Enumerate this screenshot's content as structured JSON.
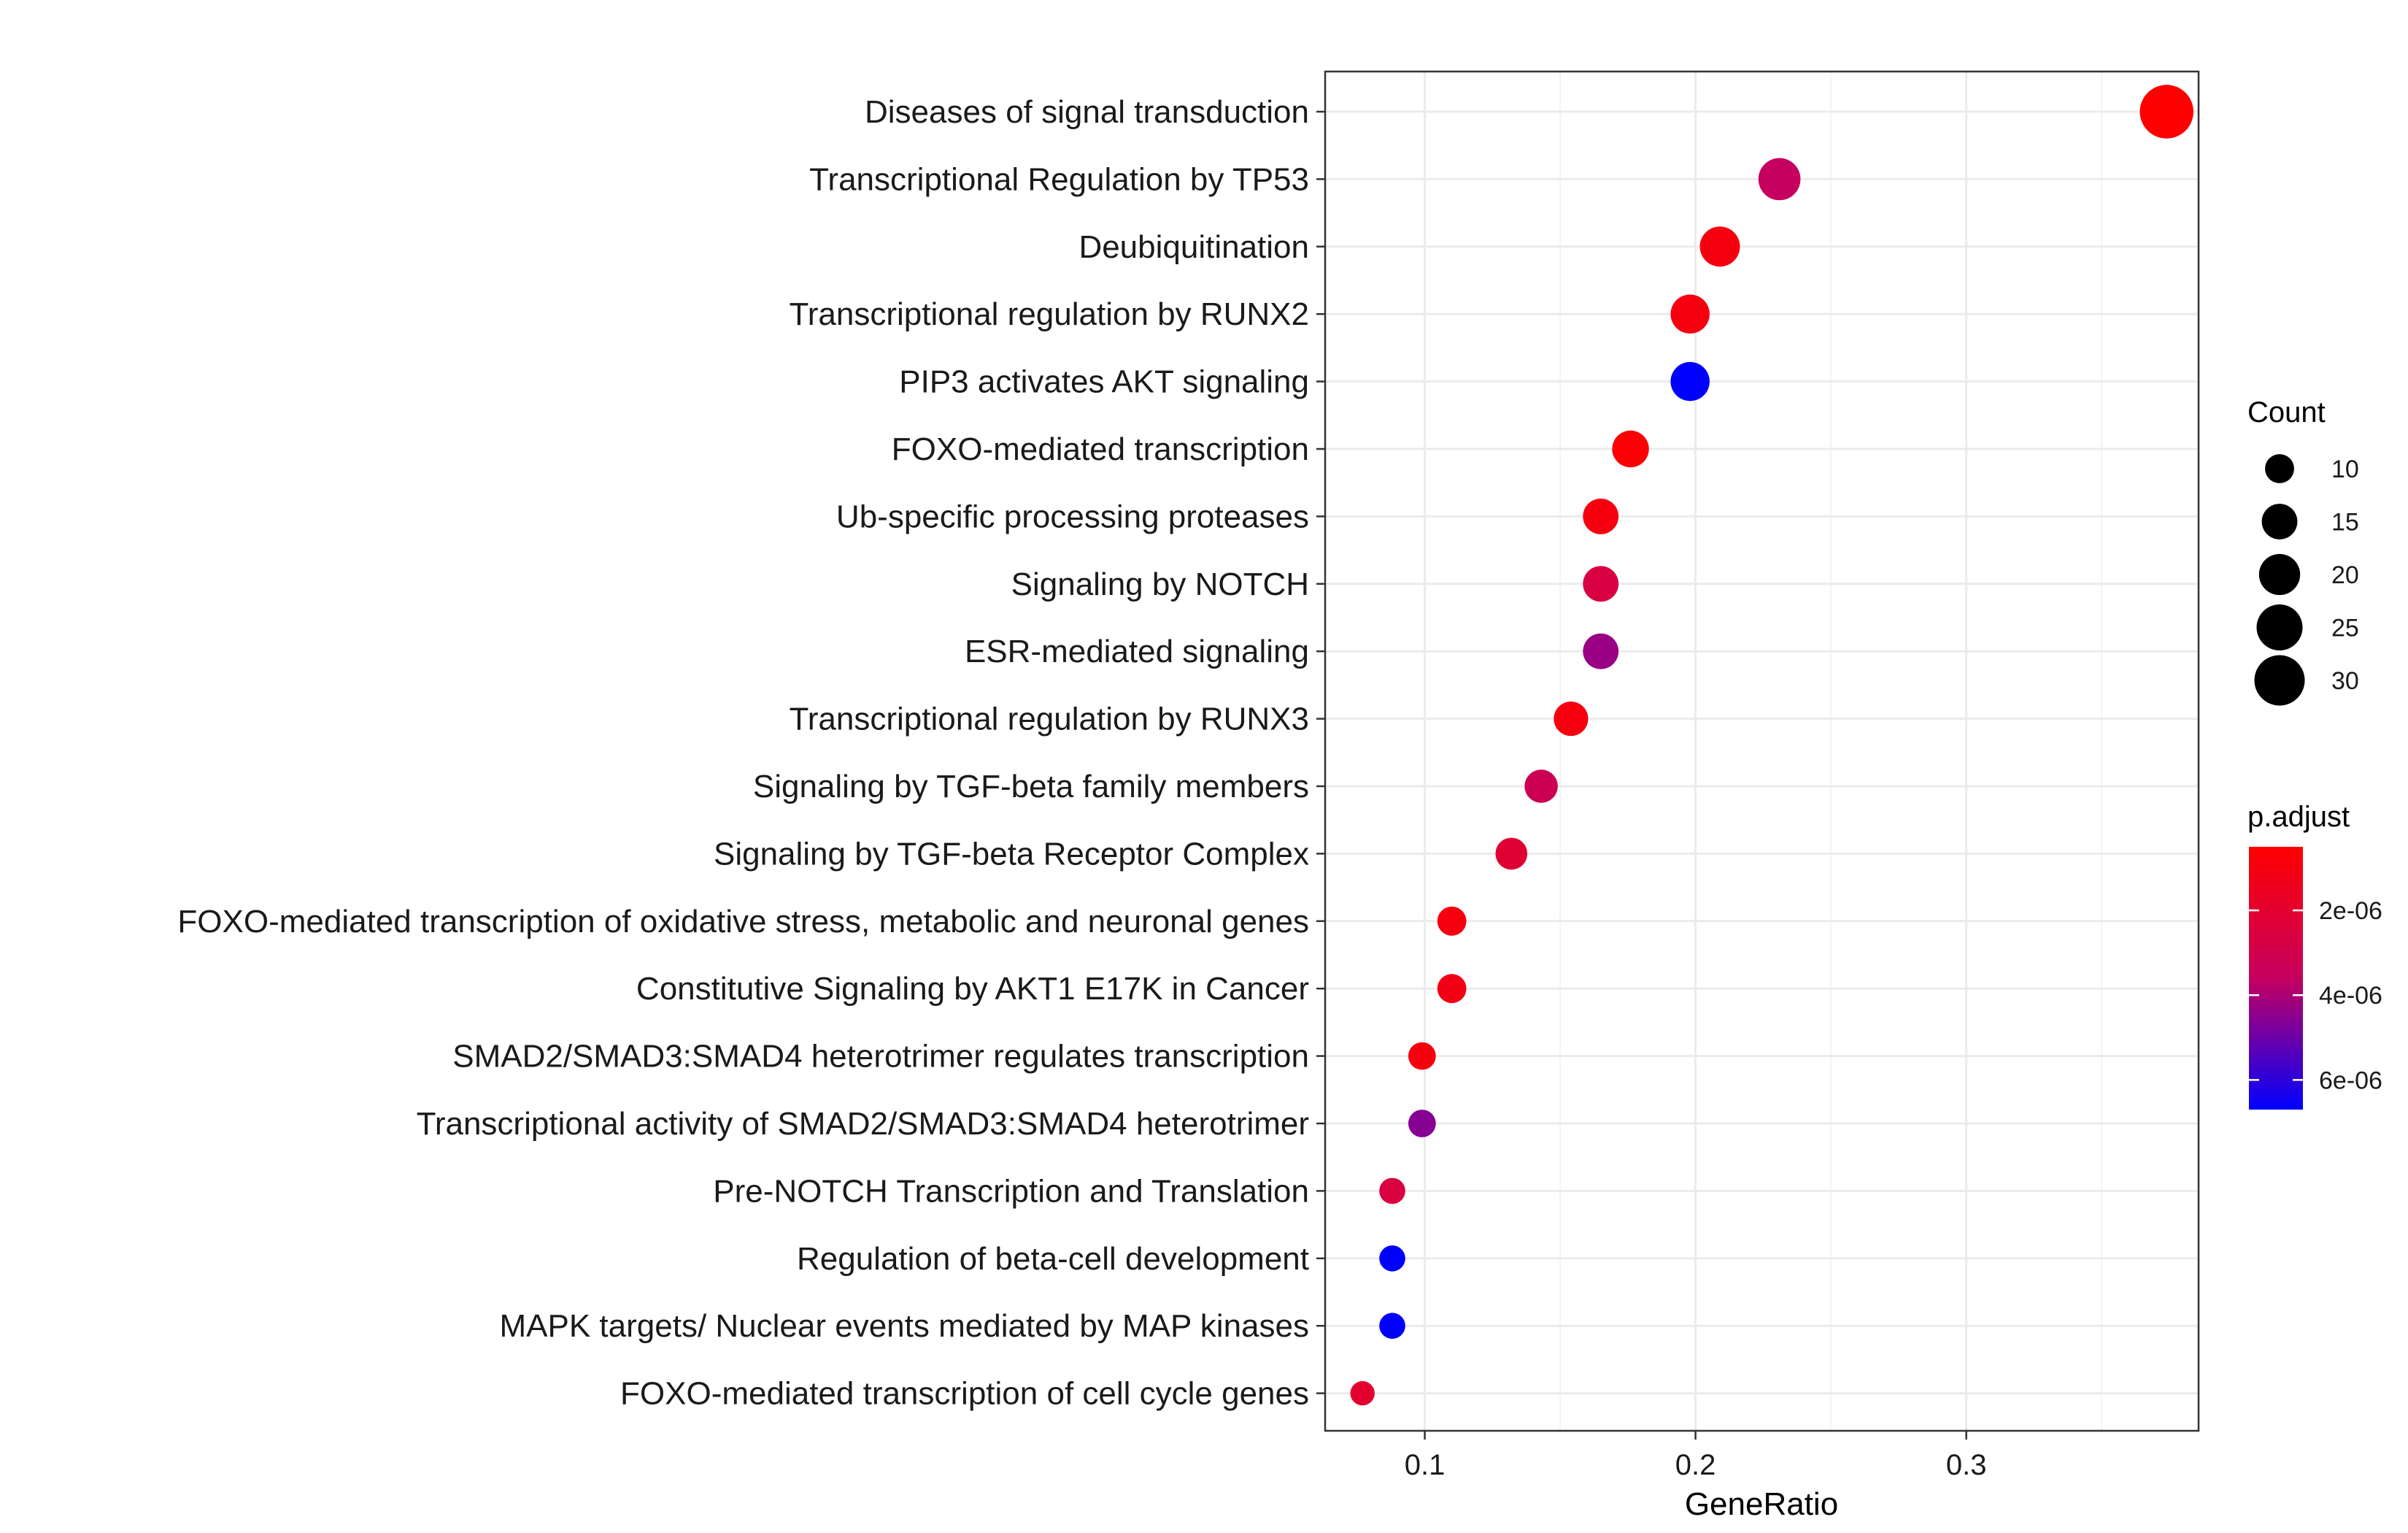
{
  "chart_data": {
    "type": "scatter",
    "xlabel": "GeneRatio",
    "ylabel": "",
    "xlim": [
      0.0632,
      0.3858
    ],
    "xticks": [
      0.1,
      0.2,
      0.3
    ],
    "x_tick_labels": [
      "0.1",
      "0.2",
      "0.3"
    ],
    "grid": true,
    "legend_position": "right",
    "categories": [
      "Diseases of signal transduction",
      "Transcriptional Regulation by TP53",
      "Deubiquitination",
      "Transcriptional regulation by RUNX2",
      "PIP3 activates AKT signaling",
      "FOXO-mediated transcription",
      "Ub-specific processing proteases",
      "Signaling by NOTCH",
      "ESR-mediated signaling",
      "Transcriptional regulation by RUNX3",
      "Signaling by TGF-beta family members",
      "Signaling by TGF-beta Receptor Complex",
      "FOXO-mediated transcription of oxidative stress, metabolic and neuronal genes",
      "Constitutive Signaling by AKT1 E17K in Cancer",
      "SMAD2/SMAD3:SMAD4 heterotrimer regulates transcription",
      "Transcriptional activity of SMAD2/SMAD3:SMAD4 heterotrimer",
      "Pre-NOTCH Transcription and Translation",
      "Regulation of beta-cell development",
      "MAPK targets/ Nuclear events mediated by MAP kinases",
      "FOXO-mediated transcription of cell cycle genes"
    ],
    "gene_ratio": [
      0.374,
      0.231,
      0.209,
      0.198,
      0.198,
      0.176,
      0.165,
      0.165,
      0.165,
      0.154,
      0.143,
      0.132,
      0.11,
      0.11,
      0.099,
      0.099,
      0.088,
      0.088,
      0.088,
      0.077
    ],
    "count": [
      34,
      21,
      19,
      18,
      18,
      16,
      15,
      15,
      15,
      14,
      13,
      12,
      10,
      10,
      9,
      9,
      8,
      8,
      8,
      7
    ],
    "p_adjust": [
      5e-07,
      3.6e-06,
      1e-06,
      1e-06,
      6.7e-06,
      6e-07,
      1e-06,
      2.6e-06,
      4.3e-06,
      1e-06,
      3.2e-06,
      2.2e-06,
      1e-06,
      1.2e-06,
      1e-06,
      4.6e-06,
      2.6e-06,
      6.7e-06,
      6.7e-06,
      2e-06
    ],
    "size_legend": {
      "title": "Count",
      "values": [
        10,
        15,
        20,
        25,
        30
      ],
      "labels": [
        "10",
        "15",
        "20",
        "25",
        "30"
      ]
    },
    "color_legend": {
      "title": "p.adjust",
      "range": [
        5e-07,
        6.7e-06
      ],
      "ticks": [
        2e-06,
        4e-06,
        6e-06
      ],
      "labels": [
        "2e-06",
        "4e-06",
        "6e-06"
      ],
      "low_color": "#ff0000",
      "high_color": "#0000ff"
    }
  }
}
